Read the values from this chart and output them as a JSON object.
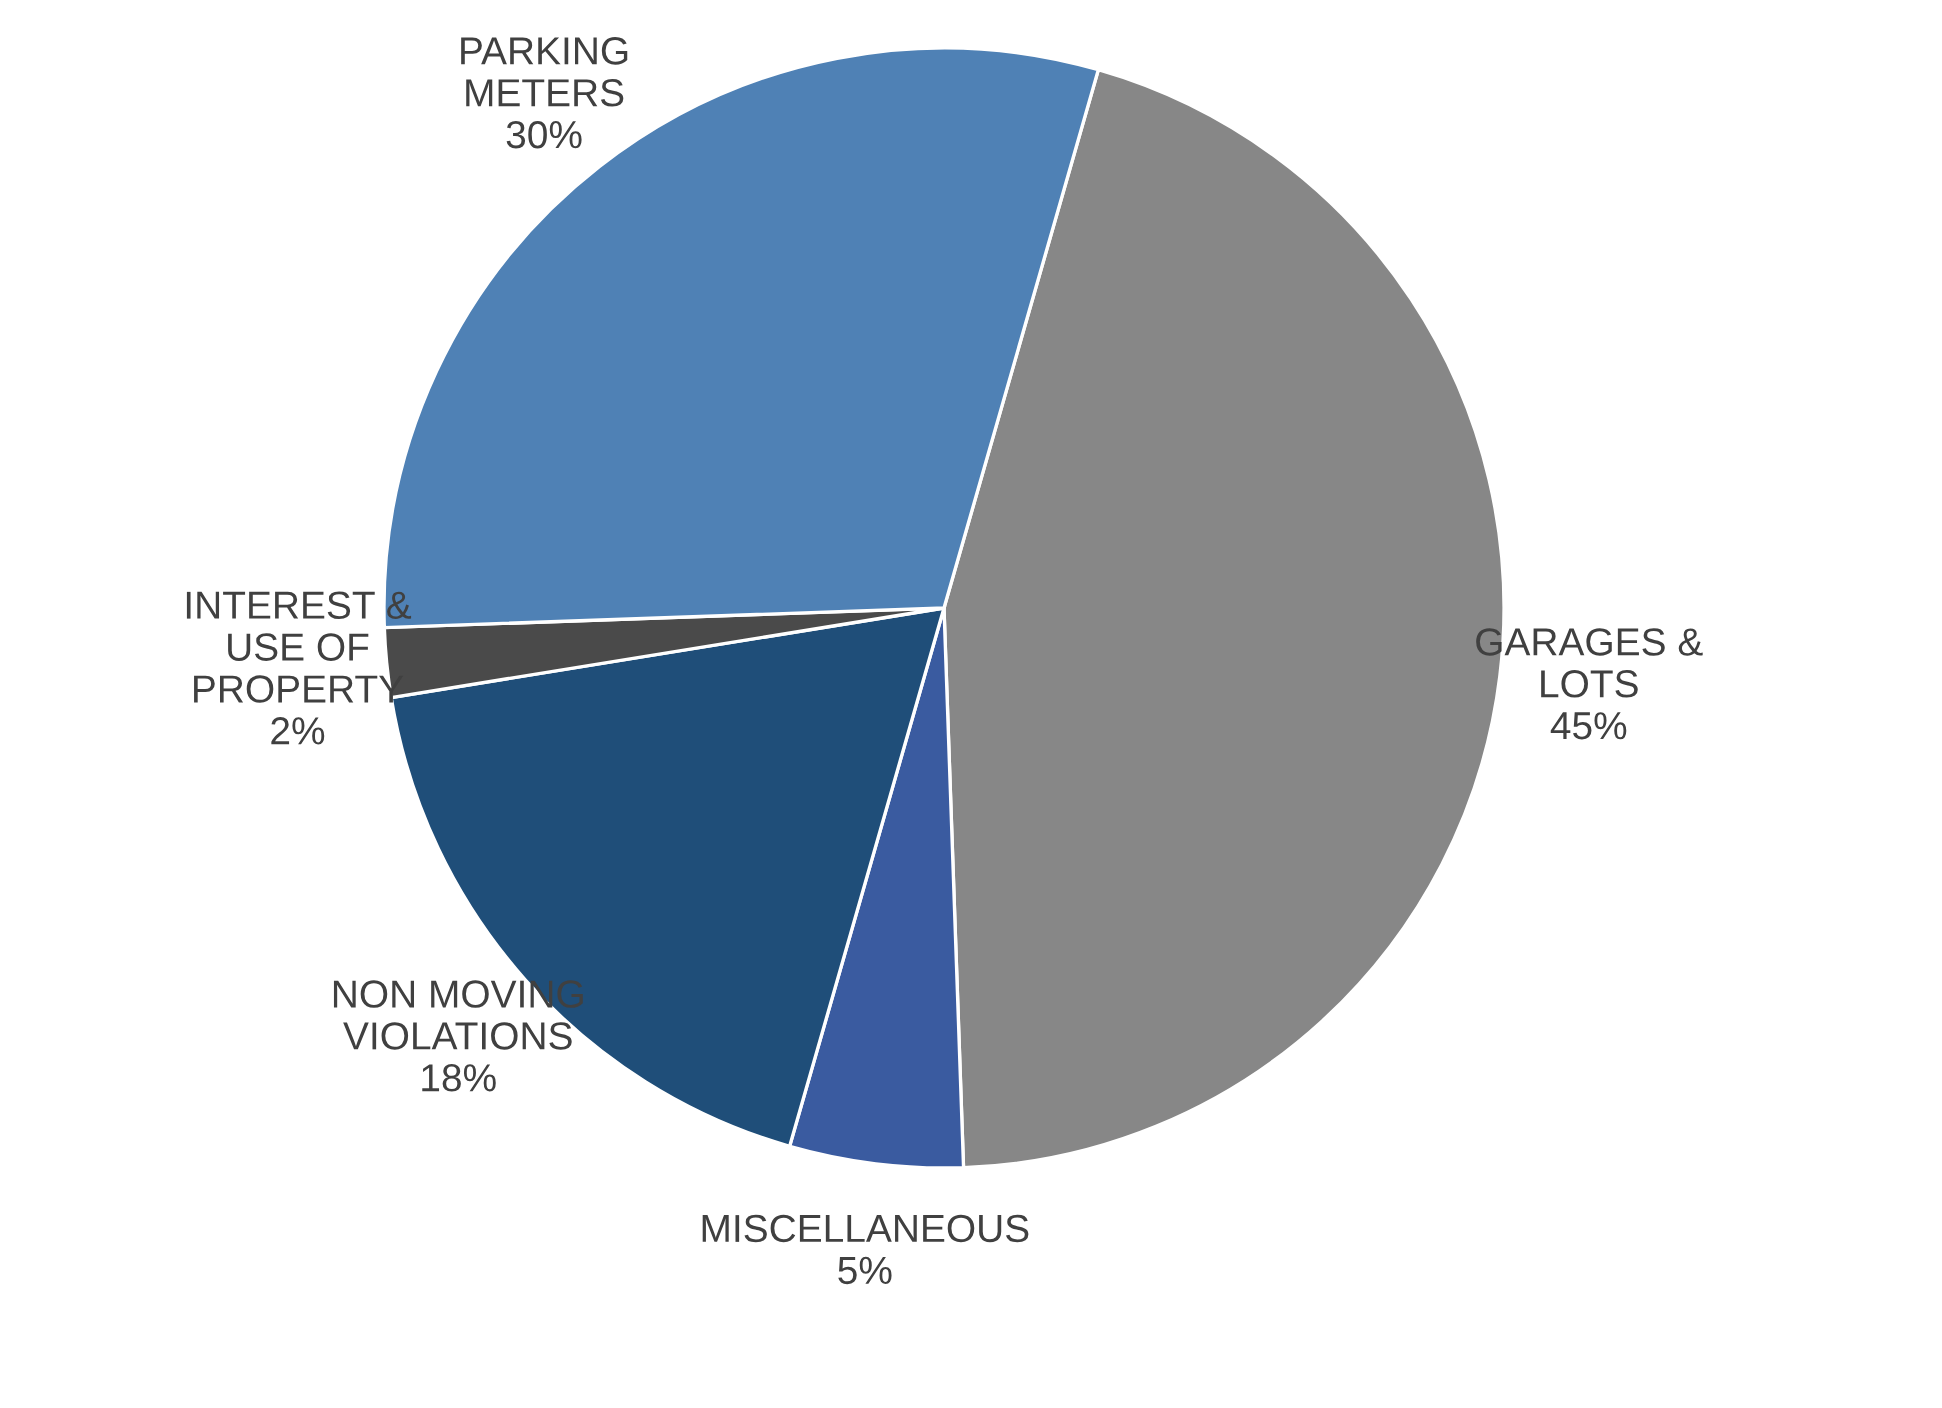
{
  "chart_data": {
    "type": "pie",
    "categories": [
      "GARAGES &\nLOTS",
      "MISCELLANEOUS",
      "NON MOVING\nVIOLATIONS",
      "INTEREST &\nUSE OF\nPROPERTY",
      "PARKING\nMETERS"
    ],
    "values": [
      45,
      5,
      18,
      2,
      30
    ],
    "value_labels": [
      "45%",
      "5%",
      "18%",
      "2%",
      "30%"
    ],
    "colors": [
      "#878787",
      "#3a5ba0",
      "#1f4e79",
      "#4a4a4a",
      "#4f81b5"
    ]
  }
}
